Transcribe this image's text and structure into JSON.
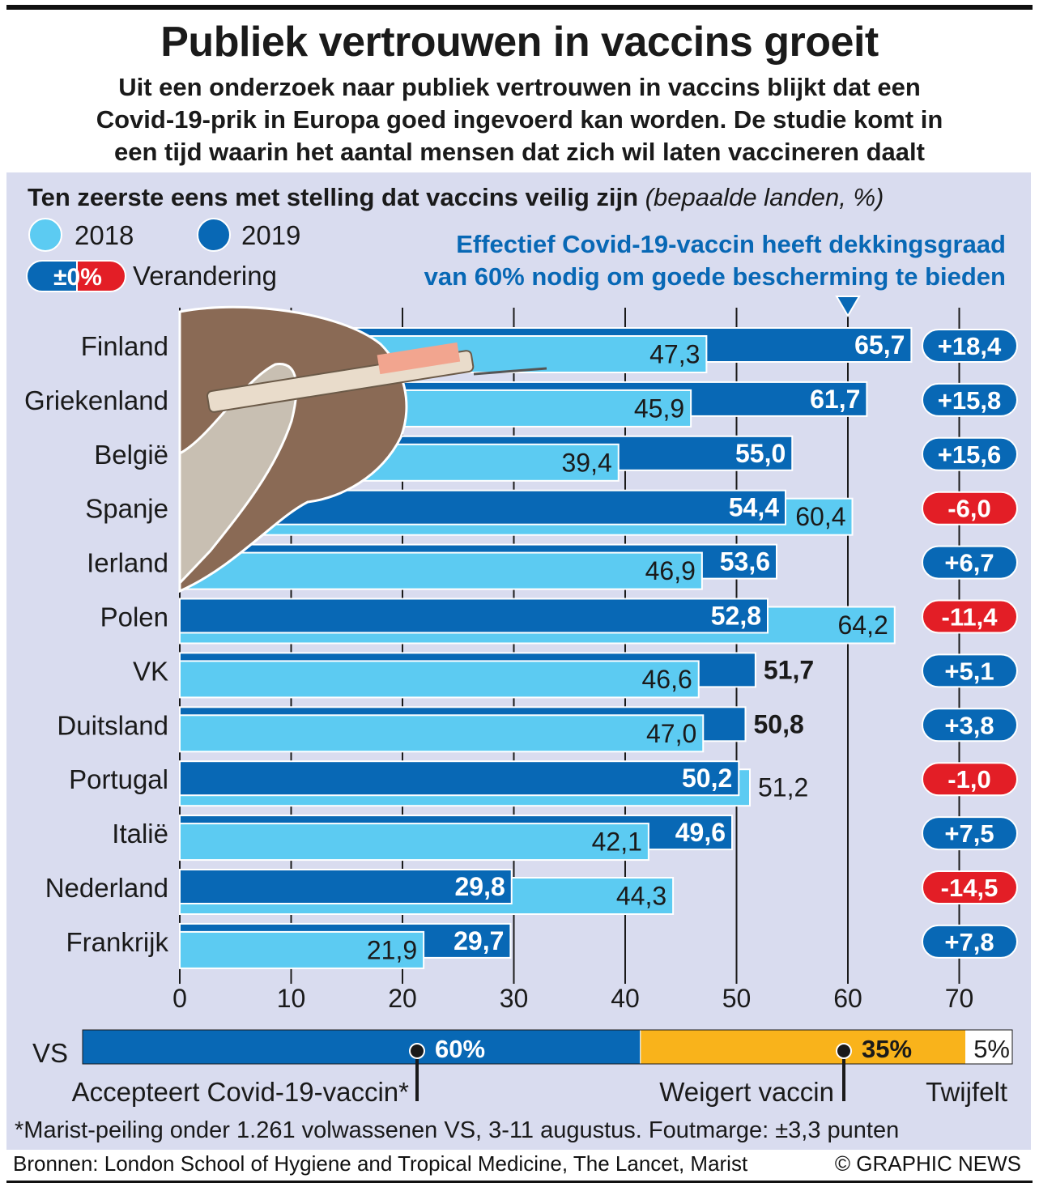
{
  "title": "Publiek vertrouwen in vaccins groeit",
  "subtitle": [
    "Uit een onderzoek naar publiek vertrouwen in vaccins blijkt dat een",
    "Covid-19-prik in Europa goed ingevoerd kan worden. De studie komt in",
    "een tijd waarin het aantal mensen dat zich wil laten vaccineren daalt"
  ],
  "chart_data": {
    "type": "bar",
    "title": "Ten zeerste eens met stelling dat vaccins veilig zijn",
    "title_note": "(bepaalde landen, %)",
    "orientation": "horizontal",
    "xlim": [
      0,
      70
    ],
    "x_ticks": [
      "0",
      "10",
      "20",
      "30",
      "40",
      "50",
      "60",
      "70"
    ],
    "grid": true,
    "legend": {
      "items": [
        "2018",
        "2019"
      ],
      "change_sample": "±0%",
      "change_label": "Verandering",
      "placement": "top-left"
    },
    "colors": {
      "2018": "#5ccbf2",
      "2019": "#0868b5",
      "up": "#0868b5",
      "down": "#e31e26"
    },
    "annotation": {
      "text": [
        "Effectief Covid-19-vaccin heeft dekkingsgraad",
        "van 60% nodig om goede bescherming te bieden"
      ],
      "x": 60
    },
    "categories": [
      "Finland",
      "Griekenland",
      "België",
      "Spanje",
      "Ierland",
      "Polen",
      "VK",
      "Duitsland",
      "Portugal",
      "Italië",
      "Nederland",
      "Frankrijk"
    ],
    "series": [
      {
        "name": "2018",
        "values": [
          47.3,
          45.9,
          39.4,
          60.4,
          46.9,
          64.2,
          46.6,
          47.0,
          51.2,
          42.1,
          44.3,
          21.9
        ],
        "labels": [
          "47,3",
          "45,9",
          "39,4",
          "60,4",
          "46,9",
          "64,2",
          "46,6",
          "47,0",
          "51,2",
          "42,1",
          "44,3",
          "21,9"
        ]
      },
      {
        "name": "2019",
        "values": [
          65.7,
          61.7,
          55.0,
          54.4,
          53.6,
          52.8,
          51.7,
          50.8,
          50.2,
          49.6,
          29.8,
          29.7
        ],
        "labels": [
          "65,7",
          "61,7",
          "55,0",
          "54,4",
          "53,6",
          "52,8",
          "51,7",
          "50,8",
          "50,2",
          "49,6",
          "29,8",
          "29,7"
        ]
      }
    ],
    "change": [
      "+18,4",
      "+15,8",
      "+15,6",
      "-6,0",
      "+6,7",
      "-11,4",
      "+5,1",
      "+3,8",
      "-1,0",
      "+7,5",
      "-14,5",
      "+7,8"
    ]
  },
  "us": {
    "label": "VS",
    "segments": [
      {
        "value": 60,
        "text": "60%",
        "label": "Accepteert Covid-19-vaccin*",
        "color": "#0868b5"
      },
      {
        "value": 35,
        "text": "35%",
        "label": "Weigert vaccin",
        "color": "#f9b31b"
      },
      {
        "value": 5,
        "text": "5%",
        "label": "Twijfelt",
        "color": "#ffffff"
      }
    ],
    "footnote": "*Marist-peiling onder 1.261 volwassenen VS, 3-11 augustus. Foutmarge: ±3,3 punten"
  },
  "sources": "Bronnen: London School of Hygiene and Tropical Medicine, The Lancet, Marist",
  "credit": "© GRAPHIC NEWS"
}
